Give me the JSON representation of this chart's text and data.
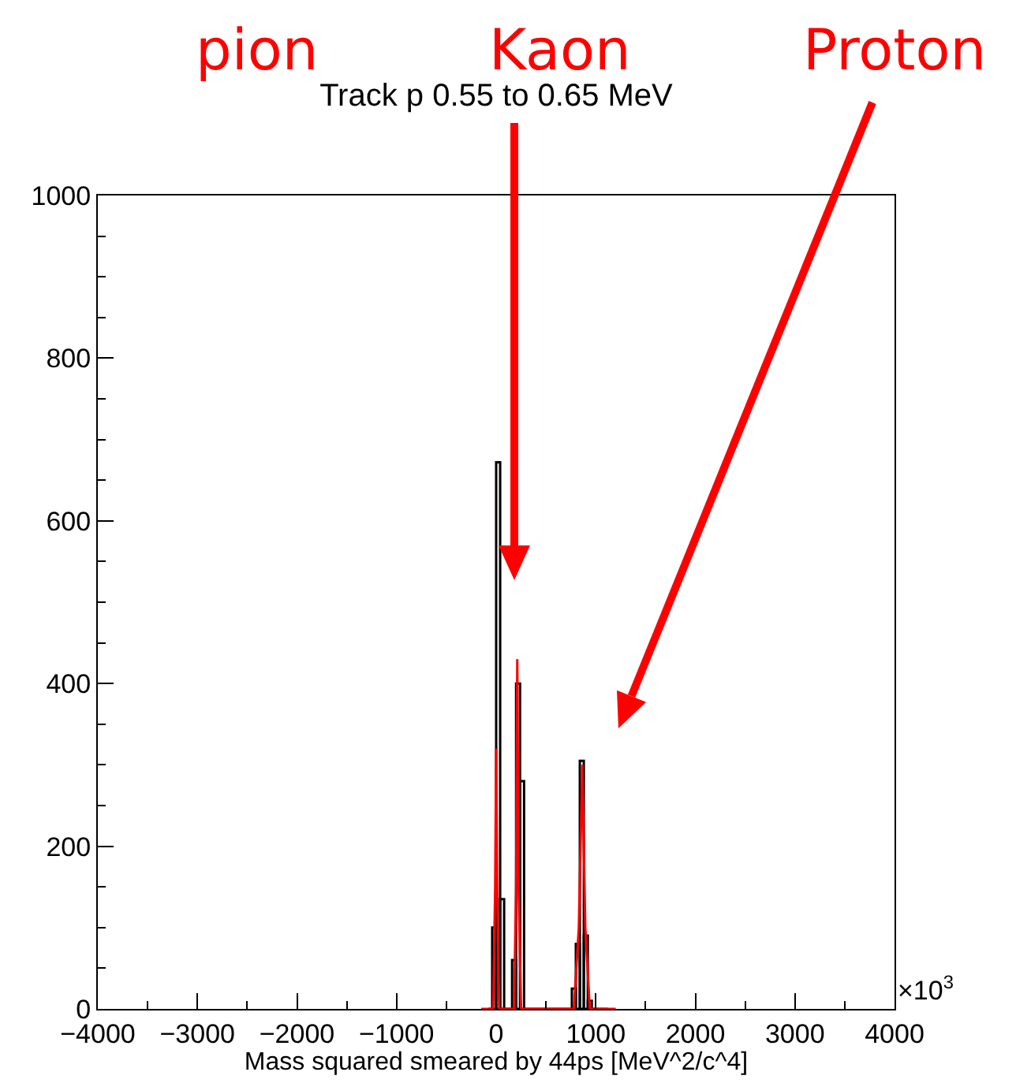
{
  "chart_data": {
    "type": "histogram",
    "title": "Track p 0.55 to 0.65 MeV",
    "xlabel": "Mass squared smeared by 44ps [MeV^2/c^4]",
    "bins": [
      -80,
      -40,
      0,
      40,
      80,
      120,
      160,
      200,
      240,
      280,
      320,
      360,
      400,
      440,
      480,
      520,
      560,
      600,
      640,
      680,
      720,
      760,
      800,
      840,
      880,
      920,
      960,
      1000,
      1040,
      1080,
      1120
    ],
    "values": [
      0,
      100,
      672,
      135,
      0,
      0,
      60,
      400,
      280,
      0,
      0,
      0,
      0,
      0,
      0,
      0,
      0,
      0,
      0,
      0,
      0,
      25,
      80,
      305,
      90,
      10,
      0,
      0,
      0,
      0
    ],
    "color": "#000000",
    "series": [
      {
        "type": "line",
        "color": "#ff0000",
        "x": [
          -150,
          -30,
          -10,
          0,
          10,
          30,
          180,
          200,
          212,
          225,
          250,
          780,
          830,
          865,
          895,
          940,
          1200
        ],
        "values": [
          0,
          0,
          150,
          320,
          150,
          0,
          0,
          150,
          430,
          150,
          0,
          0,
          100,
          300,
          100,
          0,
          0
        ]
      }
    ],
    "xlim": [
      -4000,
      4000
    ],
    "xticks": [
      -4000,
      -3000,
      -2000,
      -1000,
      0,
      1000,
      2000,
      3000,
      4000
    ],
    "ylim": [
      0,
      1000
    ],
    "yticks": [
      0,
      200,
      400,
      600,
      800,
      1000
    ],
    "grid": false,
    "annotations": [
      "×10$^{3}$",
      {
        "text": "pion"
      },
      {
        "text": "Kaon"
      },
      {
        "text": "Proton"
      }
    ]
  }
}
